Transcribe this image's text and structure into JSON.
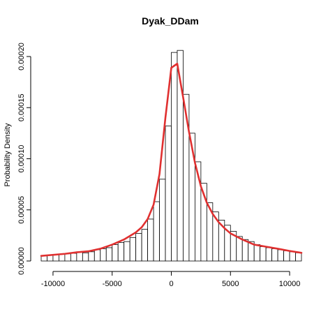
{
  "chart_data": {
    "type": "histogram",
    "title": "Dyak_DDam",
    "xlabel": "",
    "ylabel": "Probability Density",
    "xlim": [
      -11000,
      11000
    ],
    "ylim": [
      0,
      0.0002
    ],
    "grid": false,
    "bin_width": 500,
    "x_ticks": [
      -10000,
      -5000,
      0,
      5000,
      10000
    ],
    "x_tick_labels": [
      "-10000",
      "-5000",
      "0",
      "5000",
      "10000"
    ],
    "y_ticks": [
      0,
      5e-05,
      0.0001,
      0.00015,
      0.0002
    ],
    "y_tick_labels": [
      "0.00000",
      "0.00005",
      "0.00010",
      "0.00015",
      "0.00020"
    ],
    "bins": [
      {
        "start": -11000,
        "end": -10500,
        "density": 5e-06
      },
      {
        "start": -10500,
        "end": -10000,
        "density": 5.5e-06
      },
      {
        "start": -10000,
        "end": -9500,
        "density": 6e-06
      },
      {
        "start": -9500,
        "end": -9000,
        "density": 6.5e-06
      },
      {
        "start": -9000,
        "end": -8500,
        "density": 7e-06
      },
      {
        "start": -8500,
        "end": -8000,
        "density": 7.5e-06
      },
      {
        "start": -8000,
        "end": -7500,
        "density": 9e-06
      },
      {
        "start": -7500,
        "end": -7000,
        "density": 8e-06
      },
      {
        "start": -7000,
        "end": -6500,
        "density": 9e-06
      },
      {
        "start": -6500,
        "end": -6000,
        "density": 1.1e-05
      },
      {
        "start": -6000,
        "end": -5500,
        "density": 1.2e-05
      },
      {
        "start": -5500,
        "end": -5000,
        "density": 1.3e-05
      },
      {
        "start": -5000,
        "end": -4500,
        "density": 1.6e-05
      },
      {
        "start": -4500,
        "end": -4000,
        "density": 1.8e-05
      },
      {
        "start": -4000,
        "end": -3500,
        "density": 1.9e-05
      },
      {
        "start": -3500,
        "end": -3000,
        "density": 2.3e-05
      },
      {
        "start": -3000,
        "end": -2500,
        "density": 2.7e-05
      },
      {
        "start": -2500,
        "end": -2000,
        "density": 3.1e-05
      },
      {
        "start": -2000,
        "end": -1500,
        "density": 4.1e-05
      },
      {
        "start": -1500,
        "end": -1000,
        "density": 5.8e-05
      },
      {
        "start": -1000,
        "end": -500,
        "density": 8e-05
      },
      {
        "start": -500,
        "end": 0,
        "density": 0.000132
      },
      {
        "start": 0,
        "end": 500,
        "density": 0.000204
      },
      {
        "start": 500,
        "end": 1000,
        "density": 0.000206
      },
      {
        "start": 1000,
        "end": 1500,
        "density": 0.000163
      },
      {
        "start": 1500,
        "end": 2000,
        "density": 0.000125
      },
      {
        "start": 2000,
        "end": 2500,
        "density": 9.7e-05
      },
      {
        "start": 2500,
        "end": 3000,
        "density": 7.6e-05
      },
      {
        "start": 3000,
        "end": 3500,
        "density": 5.7e-05
      },
      {
        "start": 3500,
        "end": 4000,
        "density": 4.8e-05
      },
      {
        "start": 4000,
        "end": 4500,
        "density": 4e-05
      },
      {
        "start": 4500,
        "end": 5000,
        "density": 3.5e-05
      },
      {
        "start": 5000,
        "end": 5500,
        "density": 2.9e-05
      },
      {
        "start": 5500,
        "end": 6000,
        "density": 2.4e-05
      },
      {
        "start": 6000,
        "end": 6500,
        "density": 2.1e-05
      },
      {
        "start": 6500,
        "end": 7000,
        "density": 1.9e-05
      },
      {
        "start": 7000,
        "end": 7500,
        "density": 1.6e-05
      },
      {
        "start": 7500,
        "end": 8000,
        "density": 1.4e-05
      },
      {
        "start": 8000,
        "end": 8500,
        "density": 1.3e-05
      },
      {
        "start": 8500,
        "end": 9000,
        "density": 1.2e-05
      },
      {
        "start": 9000,
        "end": 9500,
        "density": 1.1e-05
      },
      {
        "start": 9500,
        "end": 10000,
        "density": 1e-05
      },
      {
        "start": 10000,
        "end": 10500,
        "density": 9e-06
      },
      {
        "start": 10500,
        "end": 11000,
        "density": 8e-06
      }
    ],
    "series": [
      {
        "type": "line",
        "color": "#e03030",
        "x": [
          -11000,
          -9000,
          -8000,
          -7000,
          -6000,
          -5000,
          -4000,
          -3000,
          -2500,
          -2000,
          -1500,
          -1000,
          -500,
          0,
          500,
          1000,
          1500,
          2000,
          2500,
          3000,
          3500,
          4000,
          4500,
          5000,
          6000,
          7000,
          8000,
          9000,
          10000,
          11000
        ],
        "y": [
          5e-06,
          7e-06,
          8.5e-06,
          9.5e-06,
          1.2e-05,
          1.6e-05,
          2.1e-05,
          2.8e-05,
          3.3e-05,
          4.1e-05,
          5.5e-05,
          8.5e-05,
          0.00014,
          0.000189,
          0.000193,
          0.00016,
          0.000126,
          9.6e-05,
          7.3e-05,
          5.7e-05,
          4.6e-05,
          3.8e-05,
          3.2e-05,
          2.7e-05,
          2.1e-05,
          1.6e-05,
          1.4e-05,
          1.2e-05,
          9.8e-06,
          8e-06
        ]
      }
    ]
  }
}
